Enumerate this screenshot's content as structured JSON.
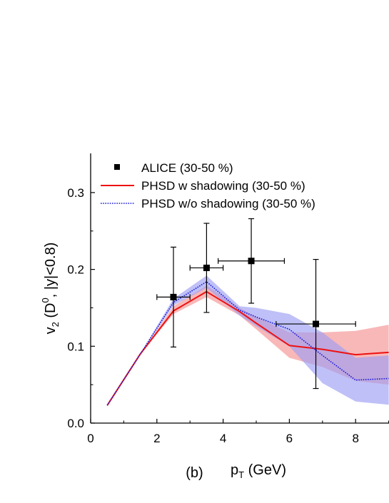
{
  "panel_label": "(b)",
  "chart_data": {
    "type": "line",
    "title": "",
    "xlabel": {
      "main": "p",
      "sub": "T",
      "rest": " (GeV)"
    },
    "ylabel": {
      "v": "v",
      "vsub": "2",
      "mid": " (D",
      "sup": "0",
      "rest": ", |y|<0.8)"
    },
    "xlim": [
      0,
      9
    ],
    "ylim": [
      0,
      0.35
    ],
    "x_ticks": [
      0,
      2,
      4,
      6,
      8
    ],
    "y_ticks": [
      0.0,
      0.1,
      0.2,
      0.3
    ],
    "x_tick_labels": [
      "0",
      "2",
      "4",
      "6",
      "8"
    ],
    "y_tick_labels": [
      "0.0",
      "0.1",
      "0.2",
      "0.3"
    ],
    "grid": false,
    "legend_position": "top-left",
    "legend": [
      {
        "label": "ALICE (30-50 %)",
        "style": "marker"
      },
      {
        "label": "PHSD w shadowing (30-50 %)",
        "style": "solid"
      },
      {
        "label": "PHSD w/o shadowing (30-50 %)",
        "style": "dotted"
      }
    ],
    "colors": {
      "data": "#000000",
      "w_shadowing": "#ee1111",
      "w_shadowing_band": "#f59a9a",
      "wo_shadowing": "#1a1ad8",
      "wo_shadowing_band": "#9d9ef2"
    },
    "series": [
      {
        "name": "ALICE (30-50 %)",
        "kind": "points",
        "x": [
          2.5,
          3.5,
          4.85,
          6.8
        ],
        "y": [
          0.164,
          0.202,
          0.211,
          0.129
        ],
        "xerr": [
          0.5,
          0.5,
          1.0,
          1.2
        ],
        "yerr_low": [
          0.065,
          0.058,
          0.055,
          0.084
        ],
        "yerr_high": [
          0.065,
          0.058,
          0.055,
          0.084
        ]
      },
      {
        "name": "PHSD w shadowing (30-50 %)",
        "kind": "line",
        "x": [
          0.5,
          1.5,
          2.5,
          3.5,
          4.5,
          5.0,
          6.0,
          7.0,
          8.0,
          9.0
        ],
        "y": [
          0.023,
          0.09,
          0.146,
          0.171,
          0.145,
          0.13,
          0.101,
          0.096,
          0.089,
          0.092
        ],
        "band_low": [
          0.023,
          0.09,
          0.142,
          0.164,
          0.14,
          0.122,
          0.085,
          0.073,
          0.055,
          0.05
        ],
        "band_high": [
          0.023,
          0.09,
          0.152,
          0.179,
          0.15,
          0.138,
          0.118,
          0.118,
          0.12,
          0.128
        ]
      },
      {
        "name": "PHSD w/o shadowing (30-50 %)",
        "kind": "line",
        "x": [
          0.5,
          1.5,
          2.5,
          3.5,
          4.5,
          5.0,
          6.0,
          7.0,
          8.0,
          9.0
        ],
        "y": [
          0.023,
          0.09,
          0.157,
          0.184,
          0.147,
          0.138,
          0.122,
          0.088,
          0.056,
          0.058
        ],
        "band_low": [
          0.023,
          0.09,
          0.153,
          0.176,
          0.14,
          0.126,
          0.1,
          0.052,
          0.028,
          0.024
        ],
        "band_high": [
          0.023,
          0.09,
          0.162,
          0.192,
          0.152,
          0.15,
          0.142,
          0.118,
          0.085,
          0.088
        ]
      }
    ]
  }
}
